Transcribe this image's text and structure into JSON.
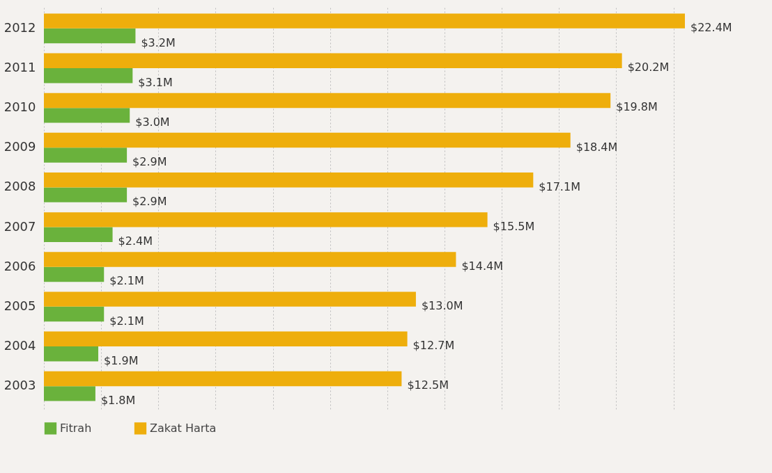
{
  "chart_data": {
    "type": "bar",
    "orientation": "horizontal",
    "categories": [
      "2012",
      "2011",
      "2010",
      "2009",
      "2008",
      "2007",
      "2006",
      "2005",
      "2004",
      "2003"
    ],
    "series": [
      {
        "name": "Fitrah",
        "color": "#6ab23c",
        "values": [
          3.2,
          3.1,
          3.0,
          2.9,
          2.9,
          2.4,
          2.1,
          2.1,
          1.9,
          1.8
        ],
        "value_labels": [
          "$3.2M",
          "$3.1M",
          "$3.0M",
          "$2.9M",
          "$2.9M",
          "$2.4M",
          "$2.1M",
          "$2.1M",
          "$1.9M",
          "$1.8M"
        ]
      },
      {
        "name": "Zakat Harta",
        "color": "#eeae0c",
        "values": [
          22.4,
          20.2,
          19.8,
          18.4,
          17.1,
          15.5,
          14.4,
          13.0,
          12.7,
          12.5
        ],
        "value_labels": [
          "$22.4M",
          "$20.2M",
          "$19.8M",
          "$18.4M",
          "$17.1M",
          "$15.5M",
          "$14.4M",
          "$13.0M",
          "$12.7M",
          "$12.5M"
        ]
      }
    ],
    "xticks": [
      {
        "value": 0,
        "label": null
      },
      {
        "value": 2,
        "label": null
      },
      {
        "value": 4,
        "label": null
      },
      {
        "value": 6,
        "label": null
      },
      {
        "value": 8,
        "label": null
      },
      {
        "value": 10,
        "label": null
      },
      {
        "value": 12,
        "label": null
      },
      {
        "value": 14,
        "label": null
      },
      {
        "value": 16,
        "label": null
      },
      {
        "value": 18,
        "label": null
      },
      {
        "value": 20,
        "label": null
      },
      {
        "value": 22,
        "label": null
      }
    ],
    "grid": "x",
    "legend": "bottom left",
    "tick_labels": "y"
  }
}
